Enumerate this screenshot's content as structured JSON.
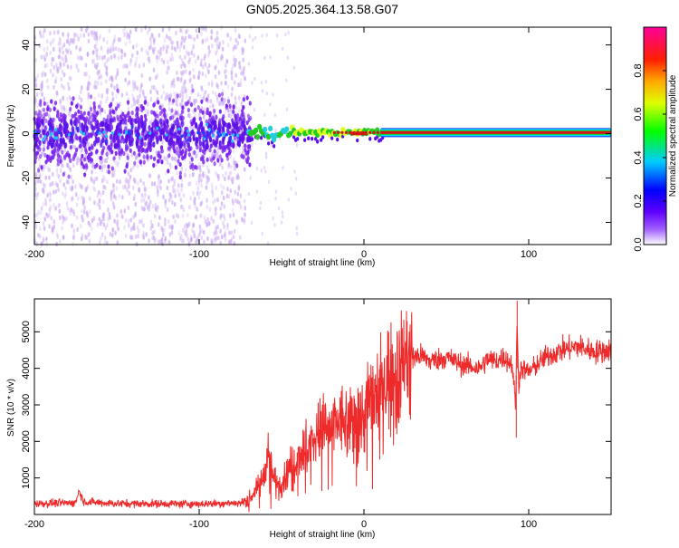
{
  "title": "GN05.2025.364.13.58.G07",
  "colors": {
    "snr_line": "#ee2a2a",
    "trace_red": "#d01818",
    "trace_green": "#22cc22",
    "trace_cyan": "#22ccdd",
    "noise_purple": "#7a22ee",
    "noise_lavender": "#c9a8f2"
  },
  "chart_data": [
    {
      "type": "heatmap",
      "xlabel": "Height of straight line (km)",
      "ylabel": "Frequency (Hz)",
      "xlim": [
        -200,
        150
      ],
      "ylim": [
        -50,
        48
      ],
      "xticks": [
        -200,
        -100,
        0,
        100
      ],
      "yticks": [
        -40,
        -20,
        0,
        20,
        40
      ],
      "colorbar": {
        "label": "Normalized spectral amplitude",
        "range": [
          0,
          1
        ],
        "ticks": [
          0.0,
          0.2,
          0.4,
          0.6,
          0.8
        ],
        "tick_labels": [
          "0.0",
          "0.2",
          "0.4",
          "0.6",
          "0.8"
        ],
        "colormap": [
          "#ffffff",
          "#8800ff",
          "#0000ff",
          "#00e0ff",
          "#00ff00",
          "#ffff00",
          "#ff8800",
          "#ff0000",
          "#ff00aa"
        ]
      },
      "features": {
        "noise_region_km": [
          -200,
          -72
        ],
        "main_trace_start_km": -70,
        "main_trace_freq_hz": 0.5,
        "main_trace_amplitude": 0.85
      }
    },
    {
      "type": "line",
      "xlabel": "Height of straight line (km)",
      "ylabel": "SNR (10 * v/v)",
      "xlim": [
        -200,
        150
      ],
      "ylim": [
        0,
        5900
      ],
      "xticks": [
        -200,
        -100,
        0,
        100
      ],
      "yticks": [
        1000,
        2000,
        3000,
        4000,
        5000
      ],
      "series": [
        {
          "name": "SNR",
          "x": [
            -200,
            -175,
            -173,
            -170,
            -150,
            -100,
            -75,
            -68,
            -62,
            -58,
            -55,
            -50,
            -45,
            -40,
            -35,
            -30,
            -25,
            -20,
            -15,
            -10,
            -5,
            0,
            5,
            10,
            15,
            20,
            25,
            30,
            35,
            40,
            50,
            60,
            70,
            75,
            80,
            85,
            90,
            92,
            93,
            94,
            95,
            100,
            110,
            120,
            130,
            140,
            150
          ],
          "values": [
            300,
            320,
            650,
            350,
            300,
            290,
            320,
            500,
            950,
            1700,
            1000,
            800,
            1300,
            1600,
            1900,
            2100,
            2400,
            2300,
            2600,
            2500,
            2800,
            2700,
            3200,
            3500,
            3800,
            3900,
            4200,
            4300,
            4350,
            4200,
            4300,
            4100,
            4000,
            4250,
            4200,
            4300,
            4100,
            3000,
            5200,
            3500,
            4000,
            3900,
            4300,
            4500,
            4600,
            4450,
            4500
          ]
        }
      ]
    }
  ]
}
